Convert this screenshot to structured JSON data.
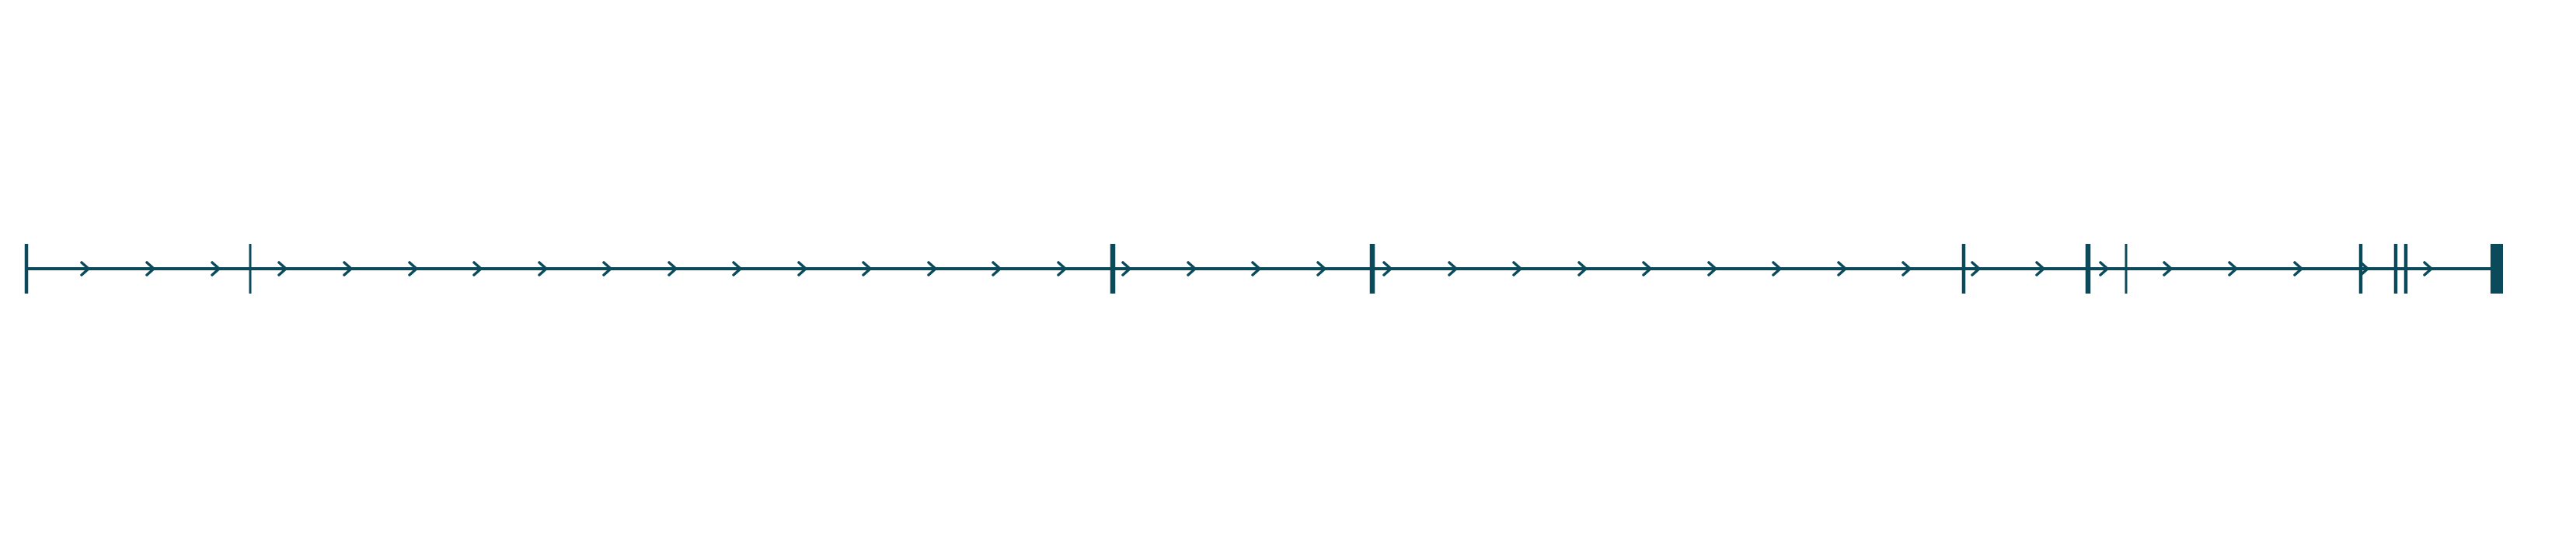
{
  "diagram": {
    "type": "gene-structure-track",
    "color": "#0b4a5a",
    "background": "#ffffff",
    "strand": "forward",
    "direction_marker": "arrow-right-icon",
    "end_marker": "terminal-block",
    "markers": [
      {
        "kind": "boundary",
        "weight": "normal"
      },
      {
        "kind": "boundary",
        "weight": "thin"
      },
      {
        "kind": "boundary",
        "weight": "bold"
      },
      {
        "kind": "boundary",
        "weight": "bold"
      },
      {
        "kind": "boundary",
        "weight": "normal"
      },
      {
        "kind": "boundary",
        "weight": "bold"
      },
      {
        "kind": "boundary",
        "weight": "thin"
      },
      {
        "kind": "boundary",
        "weight": "normal"
      },
      {
        "kind": "boundary",
        "weight": "normal"
      },
      {
        "kind": "boundary",
        "weight": "normal"
      },
      {
        "kind": "terminal",
        "weight": "block"
      }
    ]
  }
}
